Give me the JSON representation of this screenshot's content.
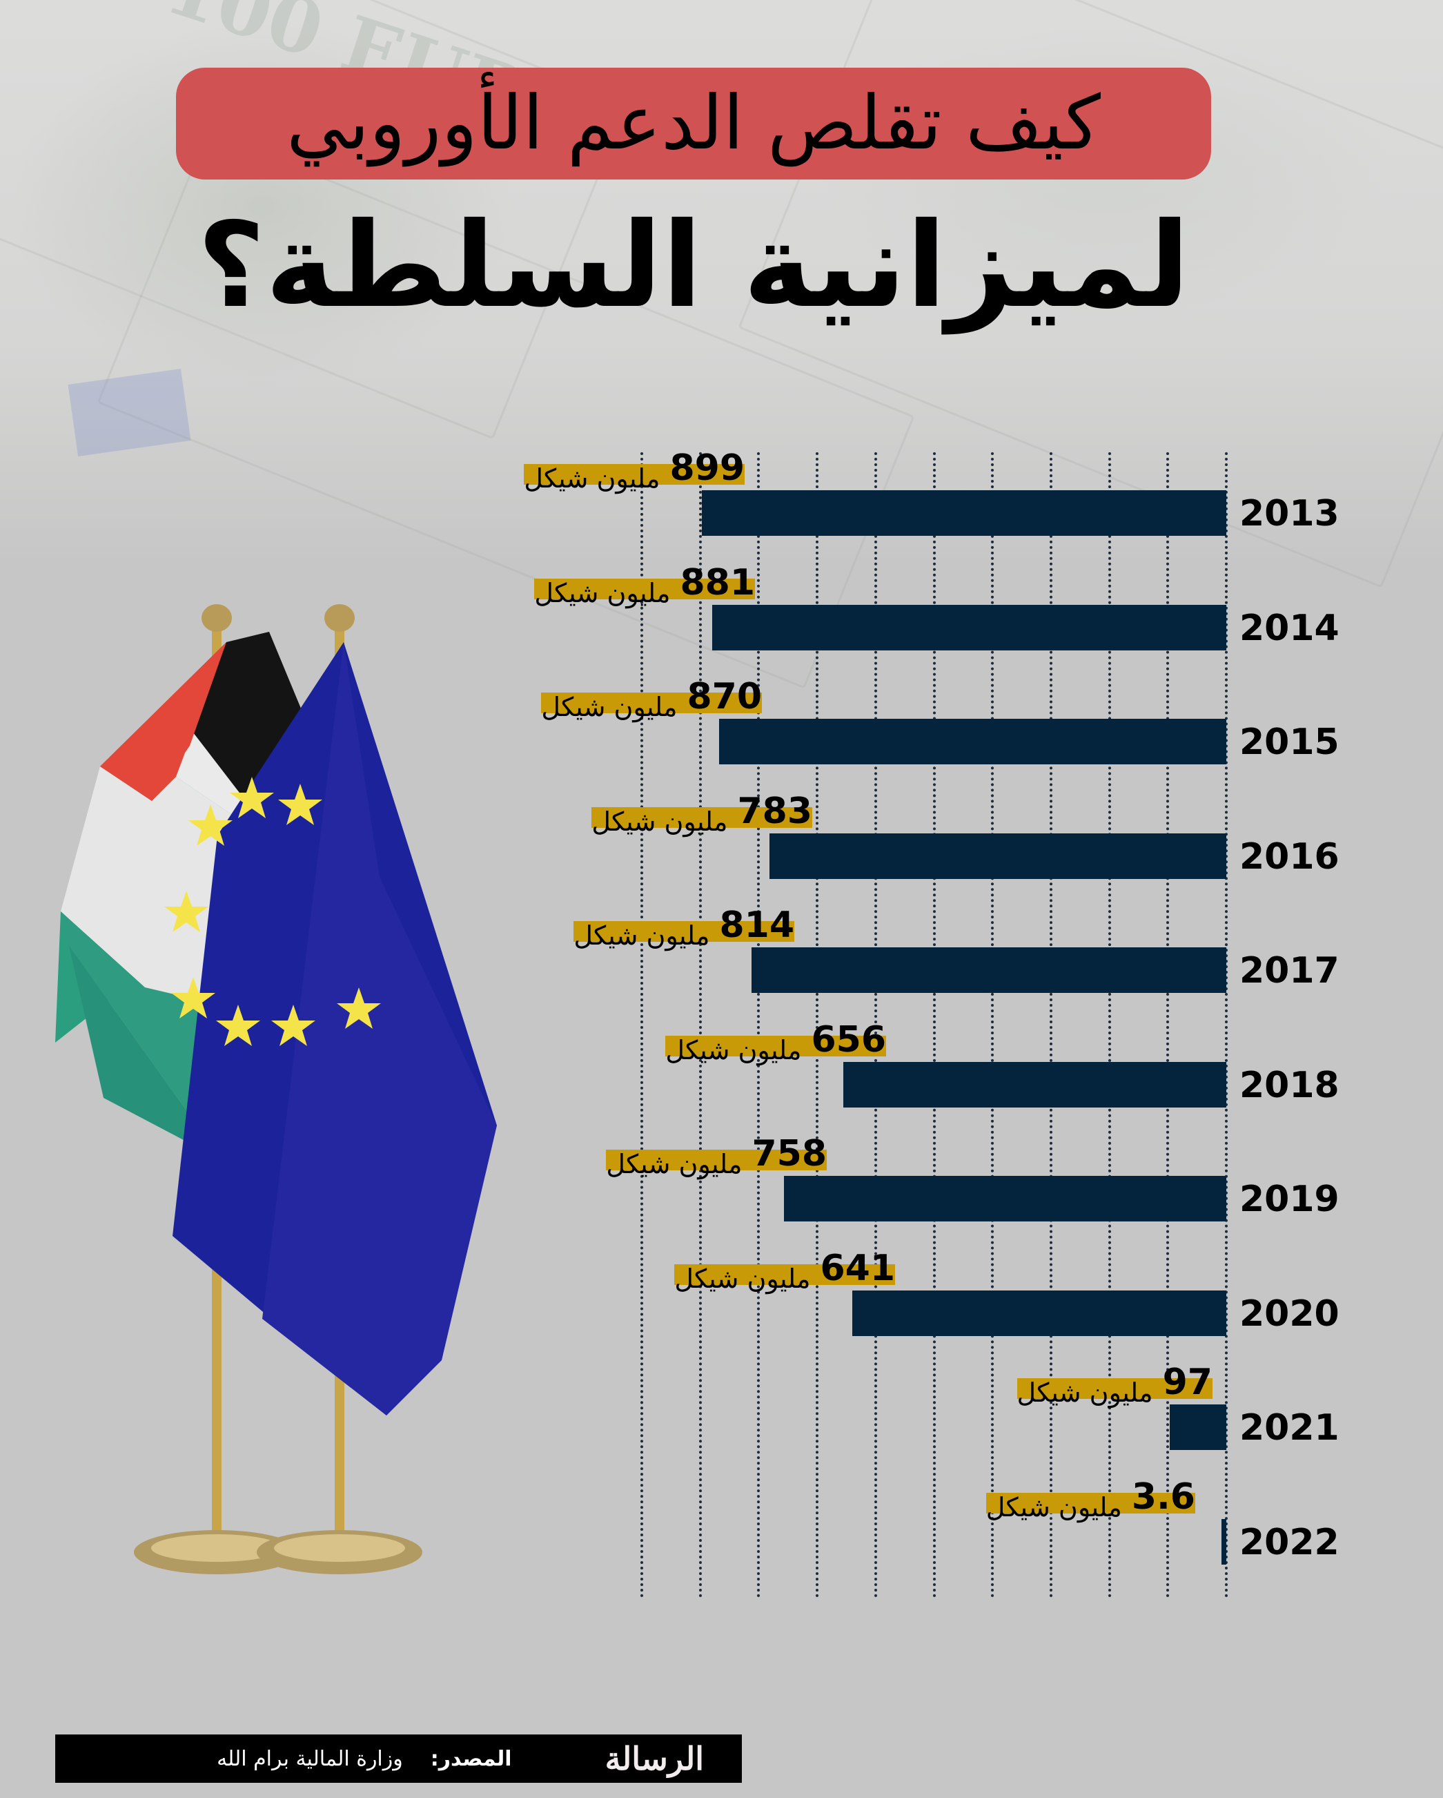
{
  "title": {
    "line1": "كيف تقلص الدعم الأوروبي",
    "line2": "لميزانية السلطة؟",
    "pill_color": "#d05252"
  },
  "colors": {
    "bar": "#04243d",
    "label_highlight": "#c89a07",
    "background": "#c6c6c6",
    "gridline": "#1d2b3a"
  },
  "unit_label": "مليون شيكل",
  "chart_data": {
    "type": "bar",
    "orientation": "horizontal",
    "title": "كيف تقلص الدعم الأوروبي لميزانية السلطة؟",
    "xlabel": "",
    "ylabel": "",
    "unit": "مليون شيكل",
    "categories": [
      "2013",
      "2014",
      "2015",
      "2016",
      "2017",
      "2018",
      "2019",
      "2020",
      "2021",
      "2022"
    ],
    "values": [
      899,
      881,
      870,
      783,
      814,
      656,
      758,
      641,
      97,
      3.6
    ],
    "value_labels": [
      "899",
      "881",
      "870",
      "783",
      "814",
      "656",
      "758",
      "641",
      "97",
      "3.6"
    ],
    "xlim": [
      0,
      1000
    ],
    "grid": true,
    "grid_style": "dotted vertical",
    "bars_direction": "right-to-left",
    "legend": null
  },
  "footer": {
    "logo_text": "الرسالة",
    "source_label": "المصدر:",
    "source_value": "وزارة المالية برام الله"
  }
}
